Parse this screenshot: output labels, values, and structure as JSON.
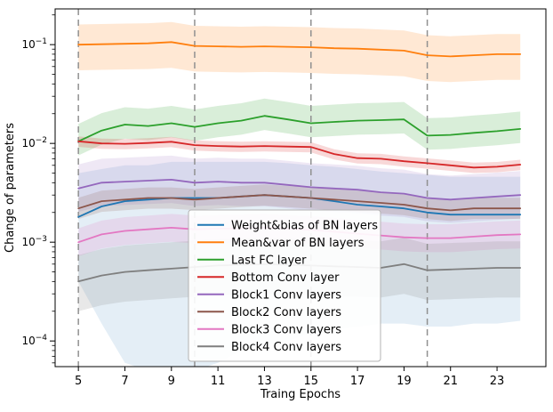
{
  "chart_data": {
    "type": "line",
    "title": "",
    "xlabel": "Traing Epochs",
    "ylabel": "Change of parameters",
    "xlim": [
      4.0,
      25.1
    ],
    "ylim": [
      5.5e-05,
      0.23
    ],
    "x_ticks": [
      5,
      7,
      9,
      11,
      13,
      15,
      17,
      19,
      21,
      23
    ],
    "y_ticks_exp": [
      -4,
      -3,
      -2,
      -1
    ],
    "vlines": [
      5,
      10,
      15,
      20
    ],
    "grid": false,
    "legend_position": "center",
    "vline_color": "#909090",
    "x": [
      5,
      6,
      7,
      8,
      9,
      10,
      11,
      12,
      13,
      14,
      15,
      16,
      17,
      18,
      19,
      20,
      21,
      22,
      23,
      24
    ],
    "series": [
      {
        "name": "Weight&bias of BN layers",
        "color": "#1f77b4",
        "values": [
          0.0018,
          0.0023,
          0.0026,
          0.0027,
          0.0028,
          0.0028,
          0.0028,
          0.0029,
          0.003,
          0.0029,
          0.0028,
          0.0026,
          0.0024,
          0.0023,
          0.0022,
          0.002,
          0.0019,
          0.0019,
          0.0019,
          0.0019
        ],
        "band_lo": [
          0.0004,
          0.00015,
          6e-05,
          5e-05,
          5e-05,
          5e-05,
          6e-05,
          8e-05,
          9e-05,
          0.0001,
          0.00012,
          0.00013,
          0.00014,
          0.00015,
          0.00015,
          0.00014,
          0.00014,
          0.00015,
          0.00015,
          0.00016
        ],
        "band_hi": [
          0.005,
          0.0055,
          0.006,
          0.006,
          0.0065,
          0.0065,
          0.0065,
          0.0065,
          0.0065,
          0.0063,
          0.006,
          0.0058,
          0.0055,
          0.0052,
          0.005,
          0.0048,
          0.0046,
          0.0046,
          0.0046,
          0.0046
        ],
        "band_opacity": 0.12
      },
      {
        "name": "Mean&var of BN layers",
        "color": "#ff7f0e",
        "values": [
          0.1,
          0.101,
          0.102,
          0.103,
          0.106,
          0.097,
          0.096,
          0.095,
          0.096,
          0.095,
          0.094,
          0.092,
          0.091,
          0.089,
          0.087,
          0.078,
          0.076,
          0.078,
          0.08,
          0.08
        ],
        "band_factor": [
          0.55,
          1.6
        ],
        "band_opacity": 0.18
      },
      {
        "name": "Last FC layer",
        "color": "#2ca02c",
        "values": [
          0.0105,
          0.0135,
          0.0155,
          0.015,
          0.016,
          0.0147,
          0.016,
          0.017,
          0.019,
          0.0175,
          0.016,
          0.0165,
          0.017,
          0.0172,
          0.0175,
          0.012,
          0.0122,
          0.0128,
          0.0133,
          0.014
        ],
        "band_factor": [
          0.72,
          1.5
        ],
        "band_opacity": 0.18
      },
      {
        "name": "Bottom Conv layer",
        "color": "#d62728",
        "values": [
          0.0105,
          0.01,
          0.0099,
          0.0101,
          0.0104,
          0.0096,
          0.0094,
          0.0093,
          0.0094,
          0.0093,
          0.0092,
          0.0078,
          0.0071,
          0.007,
          0.0066,
          0.0063,
          0.006,
          0.0057,
          0.0058,
          0.0061
        ],
        "band_factor": [
          0.88,
          1.12
        ],
        "band_opacity": 0.18
      },
      {
        "name": "Block1 Conv layers",
        "color": "#9467bd",
        "values": [
          0.0035,
          0.004,
          0.0041,
          0.0042,
          0.0043,
          0.004,
          0.0041,
          0.004,
          0.004,
          0.0038,
          0.0036,
          0.0035,
          0.0034,
          0.0032,
          0.0031,
          0.0028,
          0.0027,
          0.0028,
          0.0029,
          0.003
        ],
        "band_factor": [
          0.58,
          1.75
        ],
        "band_opacity": 0.15
      },
      {
        "name": "Block2 Conv layers",
        "color": "#8c564b",
        "values": [
          0.0022,
          0.0026,
          0.0027,
          0.0028,
          0.0028,
          0.0027,
          0.0028,
          0.0029,
          0.003,
          0.0029,
          0.0028,
          0.0027,
          0.0026,
          0.0025,
          0.0024,
          0.0022,
          0.0021,
          0.0022,
          0.0022,
          0.0022
        ],
        "band_factor": [
          0.78,
          1.28
        ],
        "band_opacity": 0.18
      },
      {
        "name": "Block3 Conv layers",
        "color": "#e377c2",
        "values": [
          0.001,
          0.0012,
          0.0013,
          0.00135,
          0.0014,
          0.00135,
          0.00137,
          0.00138,
          0.0014,
          0.00137,
          0.00133,
          0.00128,
          0.00122,
          0.00117,
          0.00112,
          0.0011,
          0.0011,
          0.00114,
          0.00118,
          0.0012
        ],
        "band_factor": [
          0.72,
          1.38
        ],
        "band_opacity": 0.18
      },
      {
        "name": "Block4 Conv layers",
        "color": "#7f7f7f",
        "values": [
          0.0004,
          0.00046,
          0.0005,
          0.00052,
          0.00054,
          0.00056,
          0.00058,
          0.00059,
          0.0006,
          0.00059,
          0.00058,
          0.00057,
          0.00056,
          0.00055,
          0.0006,
          0.00052,
          0.00053,
          0.00054,
          0.00055,
          0.00055
        ],
        "band_factor": [
          0.5,
          1.85
        ],
        "band_opacity": 0.18
      }
    ]
  }
}
